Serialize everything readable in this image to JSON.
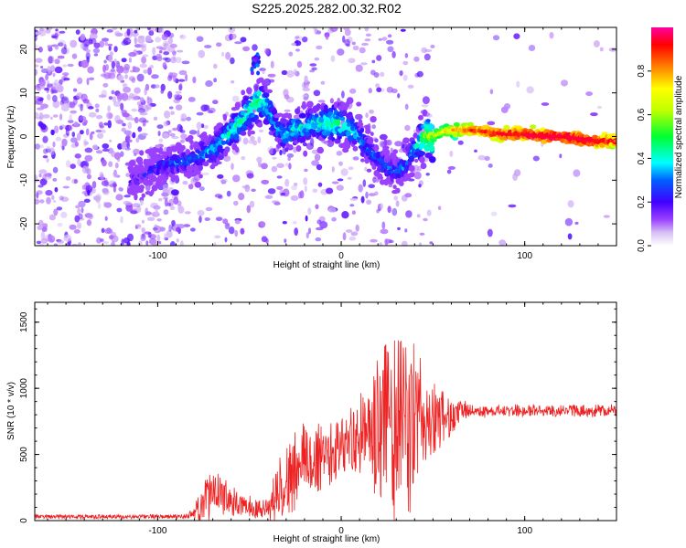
{
  "title": "S225.2025.282.00.32.R02",
  "chart_data": [
    {
      "type": "heatmap",
      "name": "spectrogram",
      "xlabel": "Height of straight line (km)",
      "ylabel": "Frequency (Hz)",
      "xlim": [
        -167,
        150
      ],
      "ylim": [
        -25,
        25
      ],
      "xticks": [
        -100,
        0,
        100
      ],
      "yticks": [
        -20,
        -10,
        0,
        10,
        20
      ],
      "colorbar": {
        "label": "Normalized spectral amplitude",
        "range": [
          0,
          1
        ],
        "ticks": [
          "0.0",
          "0.2",
          "0.4",
          "0.6",
          "0.8"
        ],
        "colors": [
          "#ffffff",
          "#c8a8f0",
          "#7a00ff",
          "#0000ff",
          "#00ffff",
          "#00ff00",
          "#ffff00",
          "#ff8000",
          "#ff0000",
          "#ff00a0"
        ]
      },
      "ridge": {
        "x": [
          -112,
          -100,
          -90,
          -80,
          -70,
          -62,
          -55,
          -50,
          -45,
          -42,
          -38,
          -35,
          -30,
          -25,
          -20,
          -15,
          -10,
          -5,
          0,
          5,
          10,
          15,
          20,
          25,
          30,
          35,
          40,
          45,
          50,
          55,
          60,
          70,
          80,
          90,
          100,
          110,
          120,
          130,
          140,
          148
        ],
        "y": [
          -10,
          -7,
          -6,
          -5,
          -3,
          0,
          3,
          6,
          8,
          8,
          5,
          2,
          0,
          2,
          2,
          3,
          3,
          3,
          3,
          2,
          0,
          -3,
          -5,
          -7,
          -8,
          -7,
          -3,
          0,
          0,
          1,
          1.5,
          1.5,
          1,
          0.5,
          0.5,
          0,
          0,
          -0.5,
          -1,
          -1
        ],
        "amplitude": [
          0.2,
          0.25,
          0.3,
          0.3,
          0.35,
          0.4,
          0.45,
          0.45,
          0.5,
          0.45,
          0.4,
          0.35,
          0.35,
          0.4,
          0.4,
          0.4,
          0.45,
          0.45,
          0.45,
          0.4,
          0.35,
          0.3,
          0.3,
          0.3,
          0.3,
          0.3,
          0.35,
          0.55,
          0.6,
          0.65,
          0.75,
          0.85,
          0.9,
          0.95,
          0.95,
          1.0,
          1.0,
          1.0,
          0.95,
          0.9
        ]
      }
    },
    {
      "type": "line",
      "name": "snr",
      "xlabel": "Height of straight line (km)",
      "ylabel": "SNR (10 * v/v)",
      "xlim": [
        -167,
        150
      ],
      "ylim": [
        0,
        1650
      ],
      "xticks": [
        -100,
        0,
        100
      ],
      "yticks": [
        0,
        500,
        1000,
        1500
      ],
      "color": "#ee2222",
      "envelope": {
        "x": [
          -167,
          -140,
          -110,
          -85,
          -80,
          -75,
          -70,
          -65,
          -60,
          -55,
          -50,
          -45,
          -40,
          -35,
          -30,
          -25,
          -20,
          -15,
          -10,
          -5,
          0,
          5,
          10,
          15,
          20,
          25,
          30,
          35,
          40,
          45,
          50,
          55,
          60,
          65,
          70,
          80,
          90,
          100,
          110,
          120,
          130,
          140,
          150
        ],
        "mean": [
          30,
          30,
          30,
          30,
          50,
          150,
          220,
          180,
          150,
          120,
          110,
          90,
          100,
          200,
          300,
          380,
          430,
          470,
          500,
          540,
          560,
          600,
          620,
          650,
          680,
          700,
          720,
          740,
          760,
          760,
          760,
          770,
          790,
          820,
          830,
          830,
          830,
          830,
          830,
          830,
          830,
          830,
          830
        ],
        "amp": [
          15,
          15,
          15,
          15,
          40,
          150,
          180,
          130,
          100,
          80,
          70,
          70,
          90,
          200,
          260,
          300,
          300,
          260,
          250,
          240,
          220,
          240,
          280,
          380,
          560,
          650,
          700,
          650,
          560,
          420,
          300,
          200,
          130,
          80,
          50,
          40,
          40,
          40,
          40,
          40,
          40,
          40,
          40
        ]
      }
    }
  ]
}
